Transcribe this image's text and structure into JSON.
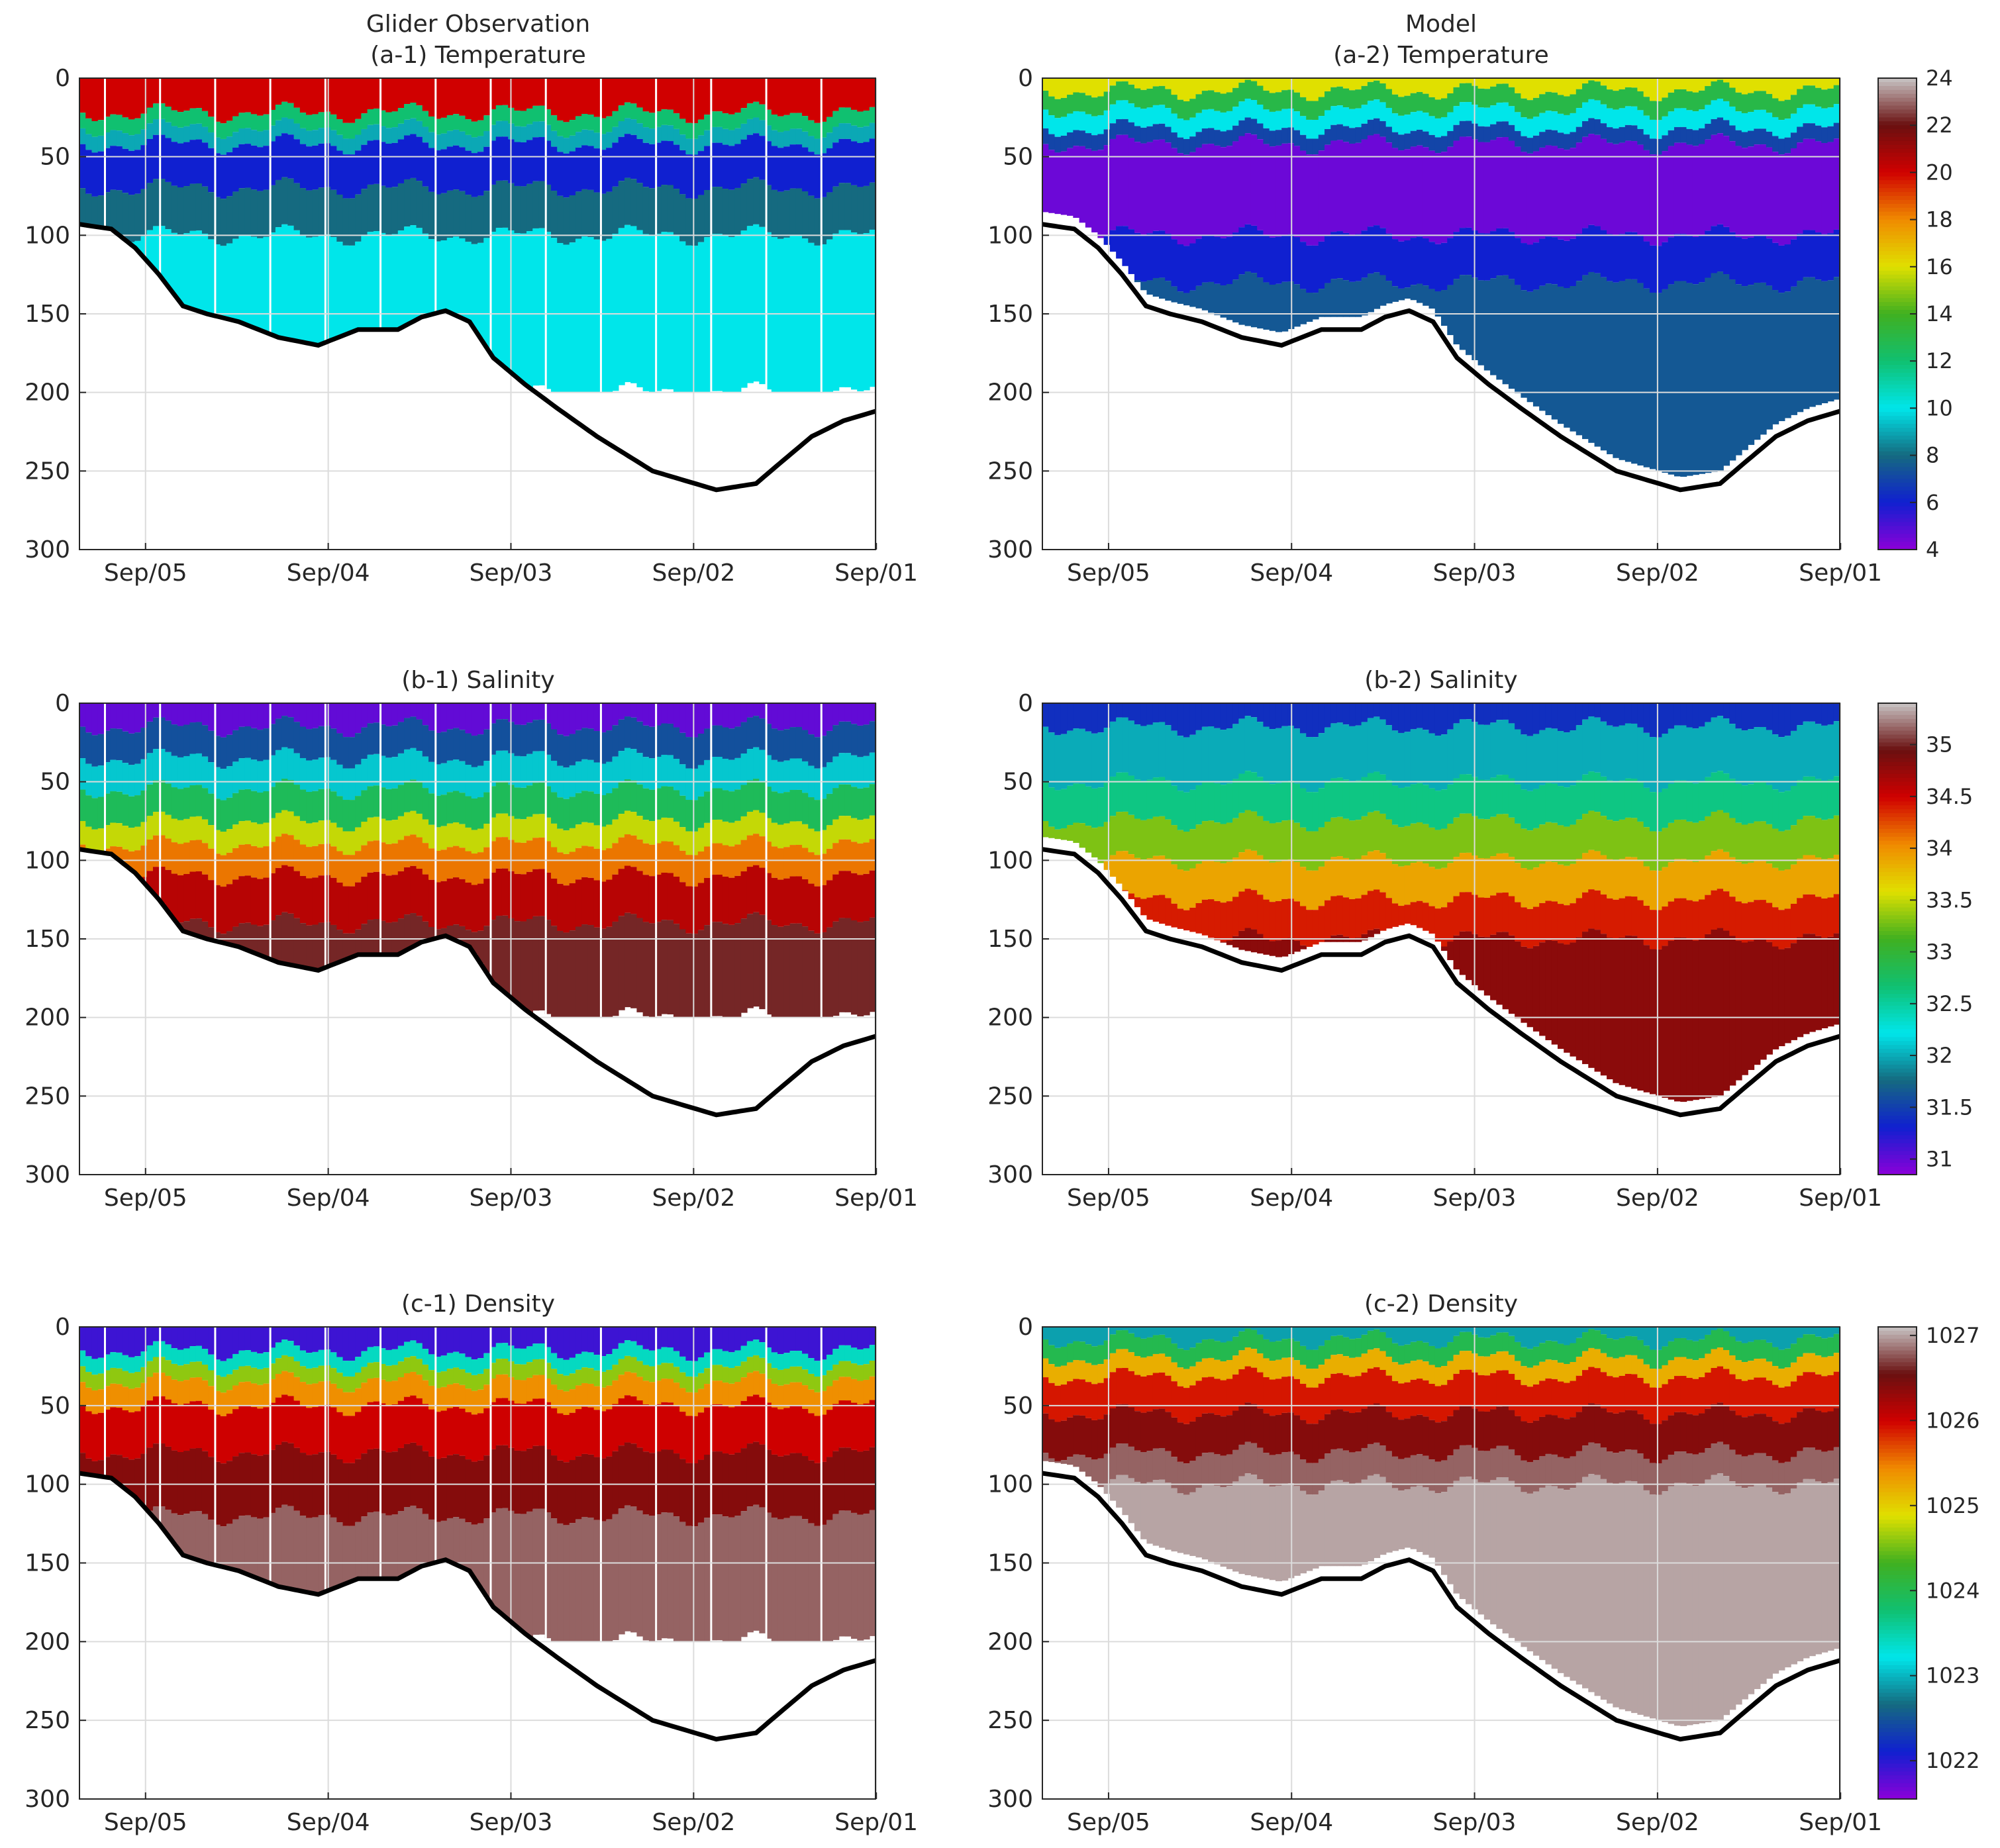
{
  "figure": {
    "column_titles": [
      "Glider Observation",
      "Model"
    ]
  },
  "chart_data": [
    {
      "id": "a-1",
      "type": "heatmap",
      "source": "glider",
      "variable": "temperature",
      "title": "(a-1) Temperature",
      "ylim": [
        0,
        300
      ],
      "yticks": [
        0,
        50,
        100,
        150,
        200,
        250,
        300
      ],
      "y_reversed": true,
      "xticks": [
        "Sep/05",
        "Sep/04",
        "Sep/03",
        "Sep/02",
        "Sep/01"
      ],
      "profile_depth_max": 200,
      "layers": [
        [
          0,
          22,
          20
        ],
        [
          22,
          32,
          12
        ],
        [
          32,
          42,
          9
        ],
        [
          42,
          70,
          6
        ],
        [
          70,
          100,
          8
        ],
        [
          100,
          200,
          10
        ]
      ]
    },
    {
      "id": "a-2",
      "type": "heatmap",
      "source": "model",
      "variable": "temperature",
      "title": "(a-2) Temperature",
      "ylim": [
        0,
        300
      ],
      "yticks": [
        0,
        50,
        100,
        150,
        200,
        250,
        300
      ],
      "y_reversed": true,
      "xticks": [
        "Sep/05",
        "Sep/04",
        "Sep/03",
        "Sep/02",
        "Sep/01"
      ],
      "layers": [
        [
          0,
          8,
          16
        ],
        [
          8,
          20,
          13
        ],
        [
          20,
          32,
          10
        ],
        [
          32,
          42,
          7
        ],
        [
          42,
          100,
          4.5
        ],
        [
          100,
          130,
          6
        ],
        [
          130,
          300,
          7.5
        ]
      ]
    },
    {
      "id": "b-1",
      "type": "heatmap",
      "source": "glider",
      "variable": "salinity",
      "title": "(b-1) Salinity",
      "ylim": [
        0,
        300
      ],
      "yticks": [
        0,
        50,
        100,
        150,
        200,
        250,
        300
      ],
      "y_reversed": true,
      "xticks": [
        "Sep/05",
        "Sep/04",
        "Sep/03",
        "Sep/02",
        "Sep/01"
      ],
      "profile_depth_max": 200,
      "layers": [
        [
          0,
          15,
          31
        ],
        [
          15,
          35,
          31.6
        ],
        [
          35,
          55,
          32.1
        ],
        [
          55,
          75,
          32.8
        ],
        [
          75,
          90,
          33.5
        ],
        [
          90,
          110,
          34.1
        ],
        [
          110,
          140,
          34.6
        ],
        [
          140,
          200,
          35.0
        ]
      ]
    },
    {
      "id": "b-2",
      "type": "heatmap",
      "source": "model",
      "variable": "salinity",
      "title": "(b-2) Salinity",
      "ylim": [
        0,
        300
      ],
      "yticks": [
        0,
        50,
        100,
        150,
        200,
        250,
        300
      ],
      "y_reversed": true,
      "xticks": [
        "Sep/05",
        "Sep/04",
        "Sep/03",
        "Sep/02",
        "Sep/01"
      ],
      "layers": [
        [
          0,
          15,
          31.4
        ],
        [
          15,
          50,
          32.0
        ],
        [
          50,
          75,
          32.6
        ],
        [
          75,
          100,
          33.3
        ],
        [
          100,
          125,
          33.9
        ],
        [
          125,
          150,
          34.4
        ],
        [
          150,
          300,
          34.8
        ]
      ]
    },
    {
      "id": "c-1",
      "type": "heatmap",
      "source": "glider",
      "variable": "density",
      "title": "(c-1) Density",
      "ylim": [
        0,
        300
      ],
      "yticks": [
        0,
        50,
        100,
        150,
        200,
        250,
        300
      ],
      "y_reversed": true,
      "xticks": [
        "Sep/05",
        "Sep/04",
        "Sep/03",
        "Sep/02",
        "Sep/01"
      ],
      "profile_depth_max": 200,
      "layers": [
        [
          0,
          15,
          1021.9
        ],
        [
          15,
          25,
          1023.4
        ],
        [
          25,
          35,
          1024.6
        ],
        [
          35,
          50,
          1025.4
        ],
        [
          50,
          80,
          1026.0
        ],
        [
          80,
          120,
          1026.4
        ],
        [
          120,
          200,
          1026.8
        ]
      ]
    },
    {
      "id": "c-2",
      "type": "heatmap",
      "source": "model",
      "variable": "density",
      "title": "(c-2) Density",
      "ylim": [
        0,
        300
      ],
      "yticks": [
        0,
        50,
        100,
        150,
        200,
        250,
        300
      ],
      "y_reversed": true,
      "xticks": [
        "Sep/05",
        "Sep/04",
        "Sep/03",
        "Sep/02",
        "Sep/01"
      ],
      "layers": [
        [
          0,
          8,
          1022.9
        ],
        [
          8,
          20,
          1024.0
        ],
        [
          20,
          32,
          1025.2
        ],
        [
          32,
          55,
          1025.9
        ],
        [
          55,
          80,
          1026.4
        ],
        [
          80,
          100,
          1026.8
        ],
        [
          100,
          300,
          1027.0
        ]
      ]
    }
  ],
  "bathymetry": {
    "description_units": "depth (m) vs fraction of section",
    "x": [
      0,
      0.04,
      0.07,
      0.1,
      0.13,
      0.16,
      0.2,
      0.25,
      0.3,
      0.35,
      0.4,
      0.43,
      0.46,
      0.49,
      0.52,
      0.56,
      0.6,
      0.65,
      0.72,
      0.8,
      0.85,
      0.88,
      0.92,
      0.96,
      1.0
    ],
    "depth": [
      93,
      96,
      108,
      125,
      145,
      150,
      155,
      165,
      170,
      160,
      160,
      152,
      148,
      155,
      178,
      195,
      210,
      228,
      250,
      262,
      258,
      245,
      228,
      218,
      212
    ]
  },
  "colorbars": [
    {
      "row": "a",
      "label_ticks": [
        "4",
        "6",
        "8",
        "10",
        "12",
        "14",
        "16",
        "18",
        "20",
        "22",
        "24"
      ],
      "range": [
        4,
        24
      ],
      "colors": [
        "#8b00d9",
        "#1020d0",
        "#156a80",
        "#00e6ea",
        "#10c070",
        "#40b020",
        "#e0e000",
        "#f08a00",
        "#d00000",
        "#6a1010",
        "#c8c4c4"
      ]
    },
    {
      "row": "b",
      "label_ticks": [
        "31",
        "31.5",
        "32",
        "32.5",
        "33",
        "33.5",
        "34",
        "34.5",
        "35"
      ],
      "range": [
        30.85,
        35.4
      ],
      "colors": [
        "#8b00d9",
        "#1020d0",
        "#156a80",
        "#00e6ea",
        "#10c070",
        "#40b020",
        "#e0e000",
        "#f08a00",
        "#d00000",
        "#6a1010",
        "#c8c4c4"
      ]
    },
    {
      "row": "c",
      "label_ticks": [
        "1022",
        "1023",
        "1024",
        "1025",
        "1026",
        "1027"
      ],
      "range": [
        1021.55,
        1027.1
      ],
      "colors": [
        "#8b00d9",
        "#1020d0",
        "#156a80",
        "#00e6ea",
        "#10c070",
        "#40b020",
        "#e0e000",
        "#f08a00",
        "#d00000",
        "#6a1010",
        "#c8c4c4"
      ]
    }
  ]
}
